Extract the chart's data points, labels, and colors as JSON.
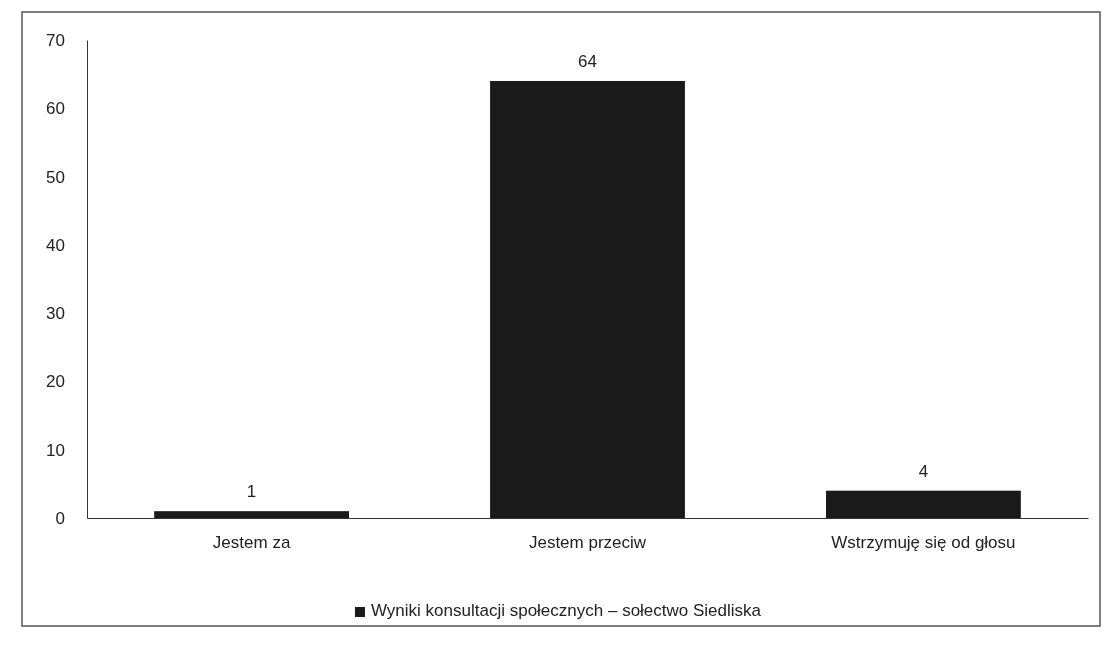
{
  "chart_data": {
    "type": "bar",
    "categories": [
      "Jestem za",
      "Jestem przeciw",
      "Wstrzymuję się od głosu"
    ],
    "series": [
      {
        "name": "Wyniki konsultacji społecznych – sołectwo Siedliska",
        "color": "#1a1a1a",
        "values": [
          1,
          64,
          4
        ]
      }
    ],
    "ylim": [
      0,
      70
    ],
    "yticks": [
      0,
      10,
      20,
      30,
      40,
      50,
      60,
      70
    ],
    "grid": false,
    "legend": "bottom",
    "data_labels": true
  }
}
